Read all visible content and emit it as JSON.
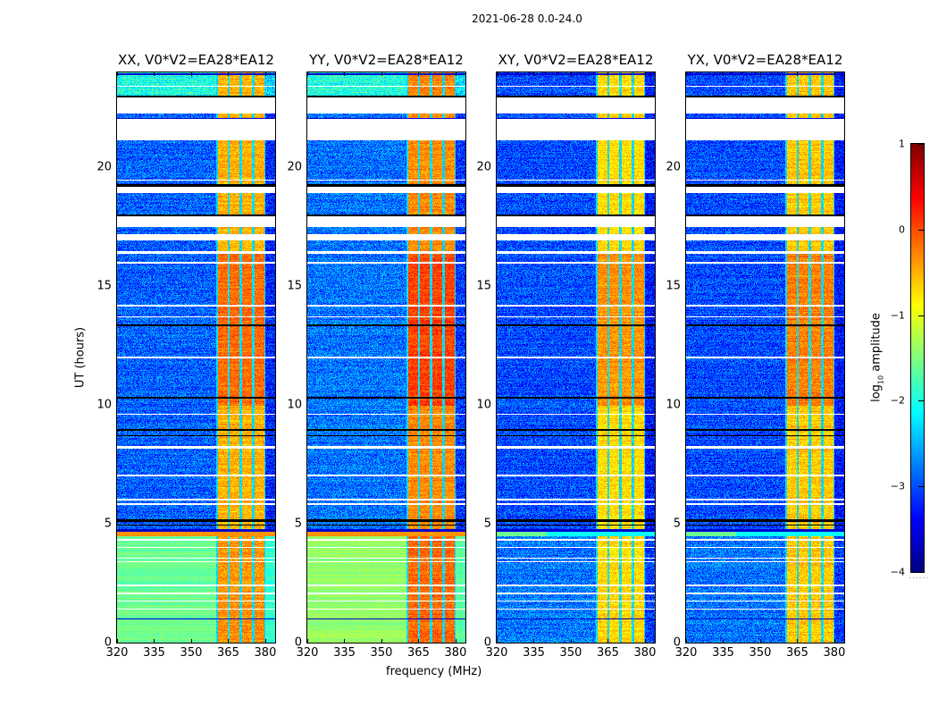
{
  "figure": {
    "suptitle": "2021-06-28 0.0-24.0",
    "xlabel": "frequency (MHz)",
    "ylabel": "UT (hours)"
  },
  "chart_data": {
    "type": "heatmap",
    "title": "2021-06-28 0.0-24.0",
    "xlabel": "frequency (MHz)",
    "ylabel": "UT (hours)",
    "xlim": [
      320,
      384
    ],
    "ylim": [
      0,
      24
    ],
    "xticks": [
      320,
      335,
      350,
      365,
      380
    ],
    "xtick_labels": [
      "320",
      "335",
      "350",
      "365",
      "380"
    ],
    "yticks": [
      0,
      5,
      10,
      15,
      20
    ],
    "ytick_labels": [
      "0",
      "5",
      "10",
      "15",
      "20"
    ],
    "colormap": "jet",
    "colorbar": {
      "label": "log10 amplitude",
      "label_main": "log",
      "label_sub": "10",
      "label_rest": " amplitude",
      "range": [
        -4,
        1
      ],
      "ticks": [
        1,
        0,
        -1,
        -2,
        -3,
        -4
      ],
      "tick_labels": [
        "1",
        "0",
        "−1",
        "−2",
        "−3",
        "−4"
      ],
      "placement": "right"
    },
    "panels": [
      {
        "name": "XX",
        "title": "XX, V0*V2=EA28*EA12",
        "polarization": "XX",
        "background_level_day": -2.9,
        "background_level_early": -1.6,
        "band_level": -0.5
      },
      {
        "name": "YY",
        "title": "YY, V0*V2=EA28*EA12",
        "polarization": "YY",
        "background_level_day": -2.8,
        "background_level_early": -1.4,
        "band_level": -0.3
      },
      {
        "name": "XY",
        "title": "XY, V0*V2=EA28*EA12",
        "polarization": "XY",
        "background_level_day": -3.0,
        "background_level_early": -2.8,
        "band_level": -0.7
      },
      {
        "name": "YX",
        "title": "YX, V0*V2=EA28*EA12",
        "polarization": "YX",
        "background_level_day": -3.0,
        "background_level_early": -2.8,
        "band_level": -0.6
      }
    ],
    "signal_subbands_mhz": [
      [
        360.5,
        364.5
      ],
      [
        365.5,
        369.5
      ],
      [
        370.5,
        374.5
      ],
      [
        375.5,
        379.5
      ]
    ],
    "flagged_white_hours": [
      [
        22.3,
        22.95
      ],
      [
        21.15,
        22.05
      ],
      [
        18.95,
        19.3
      ],
      [
        17.5,
        17.95
      ],
      [
        16.95,
        17.2
      ],
      [
        12.0,
        12.06
      ],
      [
        13.7,
        13.76
      ],
      [
        14.15,
        14.25
      ],
      [
        15.95,
        16.05
      ],
      [
        16.4,
        16.5
      ],
      [
        9.6,
        9.66
      ],
      [
        8.2,
        8.28
      ],
      [
        7.0,
        7.08
      ],
      [
        6.0,
        6.08
      ],
      [
        5.8,
        5.88
      ],
      [
        4.32,
        4.38
      ],
      [
        4.0,
        4.06
      ],
      [
        3.55,
        3.6
      ],
      [
        3.4,
        3.46
      ],
      [
        2.4,
        2.46
      ],
      [
        2.05,
        2.11
      ],
      [
        1.75,
        1.8
      ],
      [
        1.4,
        1.46
      ],
      [
        23.4,
        23.46
      ],
      [
        19.45,
        19.5
      ]
    ],
    "flagged_black_hours": [
      [
        22.95,
        23.05
      ],
      [
        19.2,
        19.3
      ],
      [
        17.95,
        18.02
      ],
      [
        13.35,
        13.42
      ],
      [
        10.3,
        10.37
      ],
      [
        8.95,
        9.02
      ],
      [
        8.7,
        8.75
      ],
      [
        5.1,
        5.2
      ],
      [
        4.95,
        5.0
      ]
    ],
    "dark_blue_hours": [
      [
        23.9,
        24.0
      ],
      [
        21.95,
        22.1
      ],
      [
        17.85,
        17.9
      ],
      [
        4.7,
        4.78
      ],
      [
        1.0,
        1.05
      ]
    ],
    "high_state_hours": [
      [
        4.5,
        4.72
      ]
    ]
  }
}
